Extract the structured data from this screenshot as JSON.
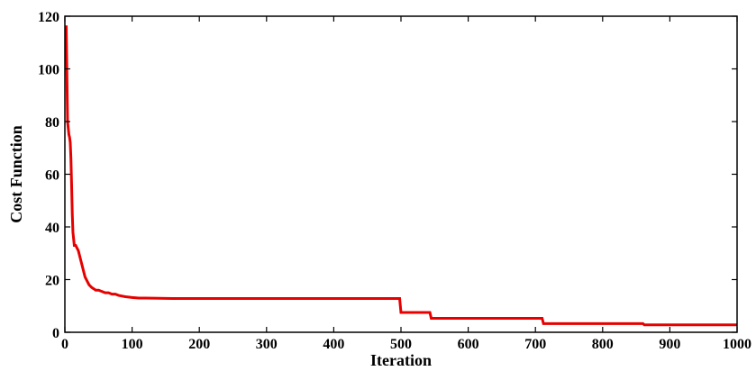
{
  "chart_data": {
    "type": "line",
    "title": "",
    "xlabel": "Iteration",
    "ylabel": "Cost Function",
    "xlim": [
      0,
      1000
    ],
    "ylim": [
      0,
      120
    ],
    "xticks": [
      0,
      100,
      200,
      300,
      400,
      500,
      600,
      700,
      800,
      900,
      1000
    ],
    "yticks": [
      0,
      20,
      40,
      60,
      80,
      100,
      120
    ],
    "grid": false,
    "legend": "none",
    "colors": {
      "line": "#e60000",
      "axis": "#000000",
      "background": "#ffffff"
    },
    "series": [
      {
        "x": [
          0,
          2,
          3,
          4,
          6,
          7,
          8,
          9,
          10,
          11,
          12,
          14,
          16,
          18,
          20,
          22,
          24,
          26,
          28,
          30,
          32,
          34,
          36,
          38,
          40,
          43,
          46,
          50,
          55,
          60,
          65,
          70,
          75,
          80,
          90,
          100,
          110,
          120,
          160,
          200,
          300,
          400,
          498,
          500,
          543,
          545,
          710,
          712,
          860,
          862,
          1000
        ],
        "y": [
          116,
          116,
          98,
          80,
          75,
          74,
          72,
          66,
          56,
          45,
          38,
          33,
          33,
          32,
          31,
          29,
          27,
          25,
          23,
          21,
          20,
          19,
          18,
          17.5,
          17,
          16.5,
          16,
          16,
          15.5,
          15,
          15,
          14.5,
          14.5,
          14,
          13.5,
          13.2,
          13,
          13,
          12.8,
          12.8,
          12.8,
          12.8,
          12.8,
          7.5,
          7.5,
          5.3,
          5.3,
          3.3,
          3.3,
          2.8,
          2.8
        ]
      }
    ]
  }
}
